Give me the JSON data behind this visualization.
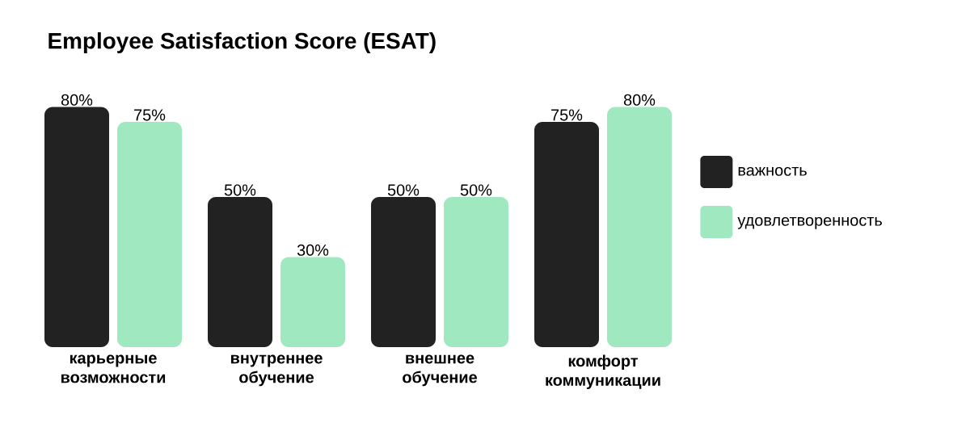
{
  "chart_data": {
    "type": "bar",
    "title": "Employee Satisfaction Score (ESAT)",
    "categories": [
      "карьерные возможности",
      "внутреннее обучение",
      "внешнее обучение",
      "комфорт коммуникации"
    ],
    "series": [
      {
        "name": "важность",
        "color": "#222222",
        "values": [
          80,
          50,
          50,
          75
        ],
        "value_labels": [
          "80%",
          "50%",
          "50%",
          "75%"
        ]
      },
      {
        "name": "удовлетворенность",
        "color": "#a0e8c0",
        "values": [
          75,
          30,
          50,
          80
        ],
        "value_labels": [
          "75%",
          "30%",
          "50%",
          "80%"
        ]
      }
    ],
    "legend": "right"
  }
}
